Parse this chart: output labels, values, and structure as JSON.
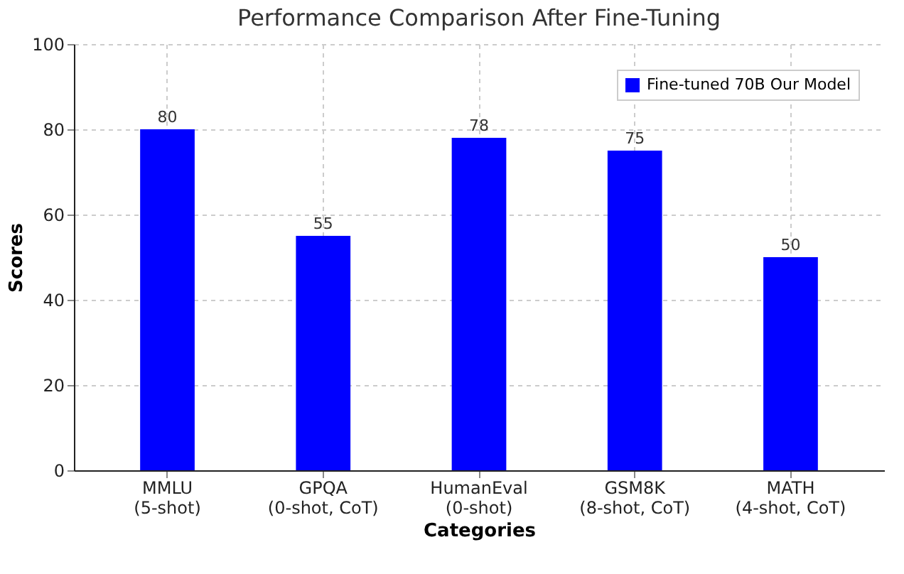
{
  "chart_data": {
    "type": "bar",
    "title": "Performance Comparison After Fine-Tuning",
    "xlabel": "Categories",
    "ylabel": "Scores",
    "categories": [
      "MMLU (5-shot)",
      "GPQA (0-shot, CoT)",
      "HumanEval (0-shot)",
      "GSM8K (8-shot, CoT)",
      "MATH (4-shot, CoT)"
    ],
    "series": [
      {
        "name": "Fine-tuned 70B Our Model",
        "color": "#0000ff",
        "values": [
          80,
          55,
          78,
          75,
          50
        ]
      }
    ],
    "ylim": [
      0,
      100
    ],
    "yticks": [
      0,
      20,
      40,
      60,
      80,
      100
    ],
    "grid": true,
    "legend": "top right",
    "data_labels": true
  }
}
